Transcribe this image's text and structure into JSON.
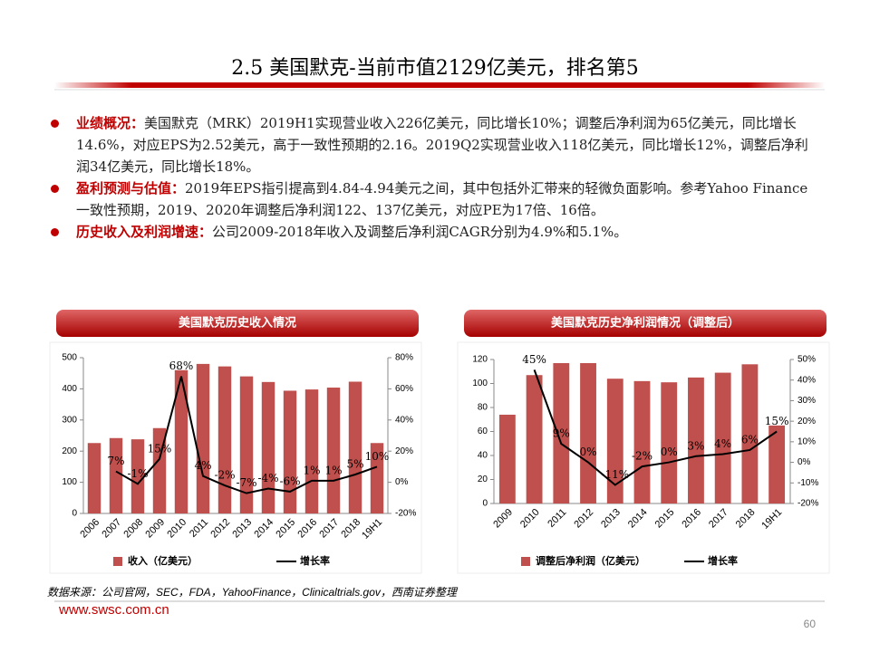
{
  "header": {
    "title": "2.5 美国默克-当前市值2129亿美元，排名第5"
  },
  "bullets": [
    {
      "label": "业绩概况：",
      "text": "美国默克（MRK）2019H1实现营业收入226亿美元，同比增长10%；调整后净利润为65亿美元，同比增长14.6%，对应EPS为2.52美元，高于一致性预期的2.16。2019Q2实现营业收入118亿美元，同比增长12%，调整后净利润34亿美元，同比增长18%。"
    },
    {
      "label": "盈利预测与估值：",
      "text": "2019年EPS指引提高到4.84-4.94美元之间，其中包括外汇带来的轻微负面影响。参考Yahoo Finance一致性预期，2019、2020年调整后净利润122、137亿美元，对应PE为17倍、16倍。"
    },
    {
      "label": "历史收入及利润增速：",
      "text": "公司2009-2018年收入及调整后净利润CAGR分别为4.9%和5.1%。"
    }
  ],
  "chart_data": [
    {
      "type": "bar",
      "title": "美国默克历史收入情况",
      "categories": [
        "2006",
        "2007",
        "2008",
        "2009",
        "2010",
        "2011",
        "2012",
        "2013",
        "2014",
        "2015",
        "2016",
        "2017",
        "2018",
        "19H1"
      ],
      "series": [
        {
          "name": "收入（亿美元）",
          "type": "bar",
          "color": "#c0504d",
          "values": [
            226,
            242,
            238,
            274,
            460,
            480,
            472,
            440,
            422,
            394,
            398,
            404,
            423,
            226
          ]
        },
        {
          "name": "增长率",
          "type": "line",
          "axis": "y2",
          "color": "#000000",
          "values": [
            null,
            7,
            -1,
            15,
            68,
            4,
            -2,
            -7,
            -4,
            -6,
            1,
            1,
            5,
            10
          ],
          "value_labels": [
            null,
            "7%",
            "-1%",
            "15%",
            "68%",
            "4%",
            "-2%",
            "-7%",
            "-4%",
            "-6%",
            "1%",
            "1%",
            "5%",
            "10%"
          ]
        }
      ],
      "ylim": [
        0,
        500
      ],
      "yticks": [
        0,
        100,
        200,
        300,
        400,
        500
      ],
      "y2lim": [
        -20,
        80
      ],
      "y2ticks": [
        {
          "value": -20,
          "label": "-20%"
        },
        {
          "value": 0,
          "label": "0%"
        },
        {
          "value": 20,
          "label": "20%"
        },
        {
          "value": 40,
          "label": "40%"
        },
        {
          "value": 60,
          "label": "60%"
        },
        {
          "value": 80,
          "label": "80%"
        }
      ],
      "grid": false
    },
    {
      "type": "bar",
      "title": "美国默克历史净利润情况（调整后）",
      "categories": [
        "2009",
        "2010",
        "2011",
        "2012",
        "2013",
        "2014",
        "2015",
        "2016",
        "2017",
        "2018",
        "19H1"
      ],
      "series": [
        {
          "name": "调整后净利润（亿美元）",
          "type": "bar",
          "color": "#c0504d",
          "values": [
            74,
            107,
            117,
            117,
            104,
            102,
            101,
            105,
            109,
            116,
            65
          ]
        },
        {
          "name": "增长率",
          "type": "line",
          "axis": "y2",
          "color": "#000000",
          "values": [
            null,
            45,
            9,
            0,
            -11,
            -2,
            0,
            3,
            4,
            6,
            15
          ],
          "value_labels": [
            null,
            "45%",
            "9%",
            "0%",
            "-11%",
            "-2%",
            "0%",
            "3%",
            "4%",
            "6%",
            "15%"
          ]
        }
      ],
      "ylim": [
        0,
        120
      ],
      "yticks": [
        0,
        20,
        40,
        60,
        80,
        100,
        120
      ],
      "y2lim": [
        -20,
        50
      ],
      "y2ticks": [
        {
          "value": -20,
          "label": "-20%"
        },
        {
          "value": -10,
          "label": "-10%"
        },
        {
          "value": 0,
          "label": "0%"
        },
        {
          "value": 10,
          "label": "10%"
        },
        {
          "value": 20,
          "label": "20%"
        },
        {
          "value": 30,
          "label": "30%"
        },
        {
          "value": 40,
          "label": "40%"
        },
        {
          "value": 50,
          "label": "50%"
        }
      ],
      "grid": false
    }
  ],
  "source": "数据来源：公司官网，SEC，FDA，YahooFinance，Clinicaltrials.gov，西南证券整理",
  "footer": {
    "site": "www.swsc.com.cn",
    "page": "60"
  }
}
